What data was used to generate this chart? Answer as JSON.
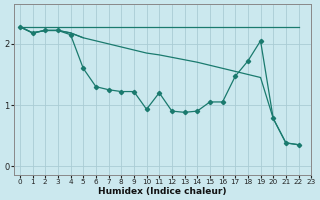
{
  "xlabel": "Humidex (Indice chaleur)",
  "bg_color": "#cbe8ee",
  "grid_color": "#aaccd4",
  "line_color": "#1a7a6e",
  "line_flat": {
    "x": [
      0,
      22
    ],
    "y": [
      2.28,
      2.28
    ]
  },
  "line_short": {
    "x": [
      0,
      1,
      2,
      3,
      4,
      5
    ],
    "y": [
      2.28,
      2.18,
      2.22,
      2.22,
      2.18,
      2.1
    ]
  },
  "line_diag": {
    "x": [
      0,
      1,
      2,
      3,
      4,
      5,
      6,
      7,
      8,
      9,
      10,
      11,
      12,
      13,
      14,
      15,
      16,
      17,
      18,
      19,
      20,
      21,
      22
    ],
    "y": [
      2.28,
      2.18,
      2.22,
      2.22,
      2.18,
      2.1,
      2.05,
      2.0,
      1.95,
      1.9,
      1.85,
      1.82,
      1.78,
      1.74,
      1.7,
      1.65,
      1.6,
      1.55,
      1.5,
      1.45,
      0.78,
      0.38,
      0.35
    ]
  },
  "line_main_x": [
    0,
    1,
    2,
    3,
    4,
    5,
    6,
    7,
    8,
    9,
    10,
    11,
    12,
    13,
    14,
    15,
    16,
    17,
    18,
    19,
    20,
    21,
    22
  ],
  "line_main_y": [
    2.28,
    2.18,
    2.22,
    2.22,
    2.15,
    1.6,
    1.3,
    1.25,
    1.22,
    1.22,
    0.93,
    1.2,
    0.9,
    0.88,
    0.9,
    1.05,
    1.05,
    1.47,
    1.72,
    2.05,
    0.78,
    0.38,
    0.35
  ],
  "ylim": [
    -0.15,
    2.65
  ],
  "xlim": [
    -0.5,
    23.0
  ],
  "yticks": [
    0,
    1,
    2
  ],
  "xticks": [
    0,
    1,
    2,
    3,
    4,
    5,
    6,
    7,
    8,
    9,
    10,
    11,
    12,
    13,
    14,
    15,
    16,
    17,
    18,
    19,
    20,
    21,
    22,
    23
  ],
  "figsize": [
    3.2,
    2.0
  ],
  "dpi": 100
}
